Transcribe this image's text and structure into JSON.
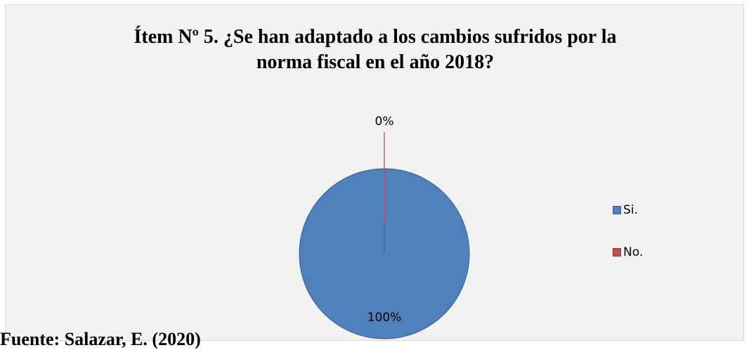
{
  "chart_data": {
    "type": "pie",
    "title": "Ítem Nº 5. ¿Se han adaptado a los cambios sufridos por la\nnorma fiscal en el año 2018?",
    "categories": [
      "Si.",
      "No."
    ],
    "values": [
      100,
      0
    ],
    "data_labels": [
      "100%",
      "0%"
    ],
    "colors": [
      "#4f81bd",
      "#c0504d"
    ],
    "legend_position": "right"
  },
  "footer": {
    "source_text": "Fuente: Salazar, E. (2020)"
  }
}
